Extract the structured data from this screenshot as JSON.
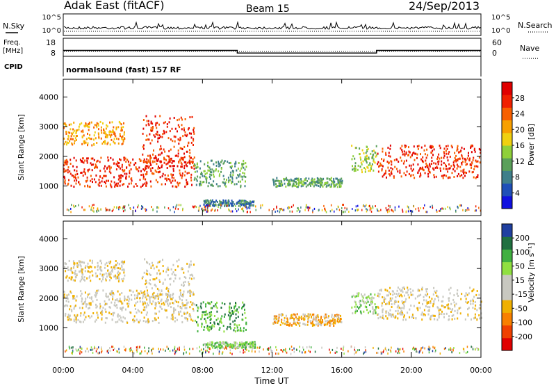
{
  "header": {
    "radar": "Adak East (fitACF)",
    "beam": "Beam 15",
    "date": "24/Sep/2013"
  },
  "colors": {
    "power": [
      "#1010e0",
      "#1f4fb8",
      "#3f7f8a",
      "#5aa05a",
      "#8fd03a",
      "#f0d010",
      "#f8a000",
      "#f86000",
      "#f02000",
      "#e00000"
    ],
    "velocity": [
      "#e00000",
      "#f04000",
      "#f88000",
      "#f0b000",
      "#c8c8c0",
      "#c8c8c0",
      "#90e040",
      "#40b040",
      "#207040",
      "#2040a0"
    ]
  },
  "chart_data": [
    {
      "id": "nsky-nsearch",
      "type": "line",
      "left_label": "N.Sky",
      "right_label": "N.Search",
      "left_ticks": [
        "10^5",
        "10^0"
      ],
      "right_ticks": [
        "10^5",
        "10^0"
      ]
    },
    {
      "id": "freq-nave",
      "type": "line",
      "left_label": "Freq.",
      "left_unit": "[MHz]",
      "right_label": "Nave",
      "left_ticks": [
        "18",
        "8"
      ],
      "right_ticks": [
        "60",
        "0"
      ],
      "freq_segments": [
        {
          "x0": 0,
          "x1": 10,
          "y": 13
        },
        {
          "x0": 10,
          "x1": 18,
          "y": 10.5
        },
        {
          "x0": 18,
          "x1": 24,
          "y": 13
        }
      ],
      "xlim": [
        0,
        24
      ]
    },
    {
      "id": "cpid",
      "type": "table",
      "label": "CPID",
      "program": "normalsound (fast) 157 RF"
    },
    {
      "id": "power",
      "type": "heatmap",
      "ylabel": "Slant Range [km]",
      "colorbar_label": "Power [dB]",
      "colorbar_ticks": [
        "28",
        "24",
        "20",
        "16",
        "12",
        "8",
        "4"
      ],
      "xlim": [
        0,
        24
      ],
      "ylim": [
        0,
        4600
      ],
      "yticks": [
        1000,
        2000,
        3000,
        4000
      ],
      "regions": [
        {
          "t0": 0,
          "t1": 7.5,
          "r0": 1000,
          "r1": 2000,
          "level": 8
        },
        {
          "t0": 4.5,
          "t1": 7.5,
          "r0": 1800,
          "r1": 3400,
          "level": 8
        },
        {
          "t0": 0,
          "t1": 3.5,
          "r0": 2400,
          "r1": 3200,
          "level": 6
        },
        {
          "t0": 7.5,
          "t1": 10.5,
          "r0": 1000,
          "r1": 1900,
          "level": 3
        },
        {
          "t0": 12,
          "t1": 16,
          "r0": 1000,
          "r1": 1300,
          "level": 3
        },
        {
          "t0": 16.5,
          "t1": 18,
          "r0": 1500,
          "r1": 2400,
          "level": 4
        },
        {
          "t0": 18,
          "t1": 24,
          "r0": 1300,
          "r1": 2400,
          "level": 8
        },
        {
          "t0": 8,
          "t1": 11,
          "r0": 350,
          "r1": 550,
          "level": 2
        }
      ]
    },
    {
      "id": "velocity",
      "type": "heatmap",
      "ylabel": "Slant Range [km]",
      "colorbar_label": "Velocity [m s⁻¹]",
      "colorbar_ticks": [
        "200",
        "100",
        "50",
        "15",
        "-15",
        "-50",
        "-100",
        "-200"
      ],
      "xlim": [
        0,
        24
      ],
      "ylim": [
        0,
        4600
      ],
      "yticks": [
        1000,
        2000,
        3000,
        4000
      ],
      "xticks": [
        "00:00",
        "04:00",
        "08:00",
        "12:00",
        "16:00",
        "20:00",
        "00:00"
      ],
      "xlabel": "Time UT",
      "regions": [
        {
          "t0": 0,
          "t1": 7.5,
          "r0": 1200,
          "r1": 2300,
          "level": 4
        },
        {
          "t0": 4.5,
          "t1": 7.5,
          "r0": 1800,
          "r1": 3400,
          "level": 4
        },
        {
          "t0": 0,
          "t1": 3.5,
          "r0": 2600,
          "r1": 3300,
          "level": 4
        },
        {
          "t0": 7.5,
          "t1": 10.5,
          "r0": 900,
          "r1": 1900,
          "level": 7
        },
        {
          "t0": 12,
          "t1": 16,
          "r0": 1100,
          "r1": 1500,
          "level": 3
        },
        {
          "t0": 16.5,
          "t1": 18,
          "r0": 1500,
          "r1": 2200,
          "level": 6
        },
        {
          "t0": 18,
          "t1": 24,
          "r0": 1300,
          "r1": 2400,
          "level": 4
        },
        {
          "t0": 8,
          "t1": 11,
          "r0": 350,
          "r1": 550,
          "level": 6
        }
      ]
    }
  ]
}
